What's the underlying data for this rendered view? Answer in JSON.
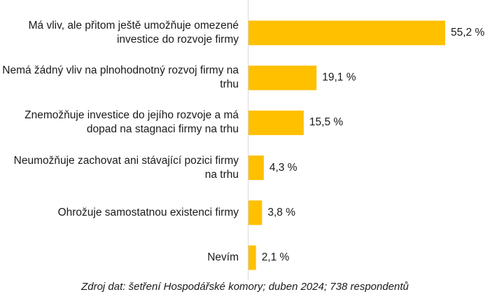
{
  "chart_data": {
    "type": "bar",
    "orientation": "horizontal",
    "title": "",
    "xlabel": "",
    "ylabel": "",
    "categories": [
      "Má vliv, ale přitom ještě umožňuje omezené investice do rozvoje firmy",
      "Nemá žádný vliv na plnohodnotný rozvoj firmy na trhu",
      "Znemožňuje investice do jejího rozvoje a má dopad na stagnaci firmy na trhu",
      "Neumožňuje zachovat ani stávající pozici firmy na trhu",
      "Ohrožuje samostatnou existenci firmy",
      "Nevím"
    ],
    "values": [
      55.2,
      19.1,
      15.5,
      4.3,
      3.8,
      2.1
    ],
    "value_labels": [
      "55,2 %",
      "19,1 %",
      "15,5 %",
      "4,3 %",
      "3,8 %",
      "2,1 %"
    ],
    "xlim": [
      0,
      60
    ],
    "grid": false,
    "bar_color": "#FFC000",
    "source": "Zdroj dat: šetření Hospodářské komory; duben 2024; 738 respondentů"
  }
}
